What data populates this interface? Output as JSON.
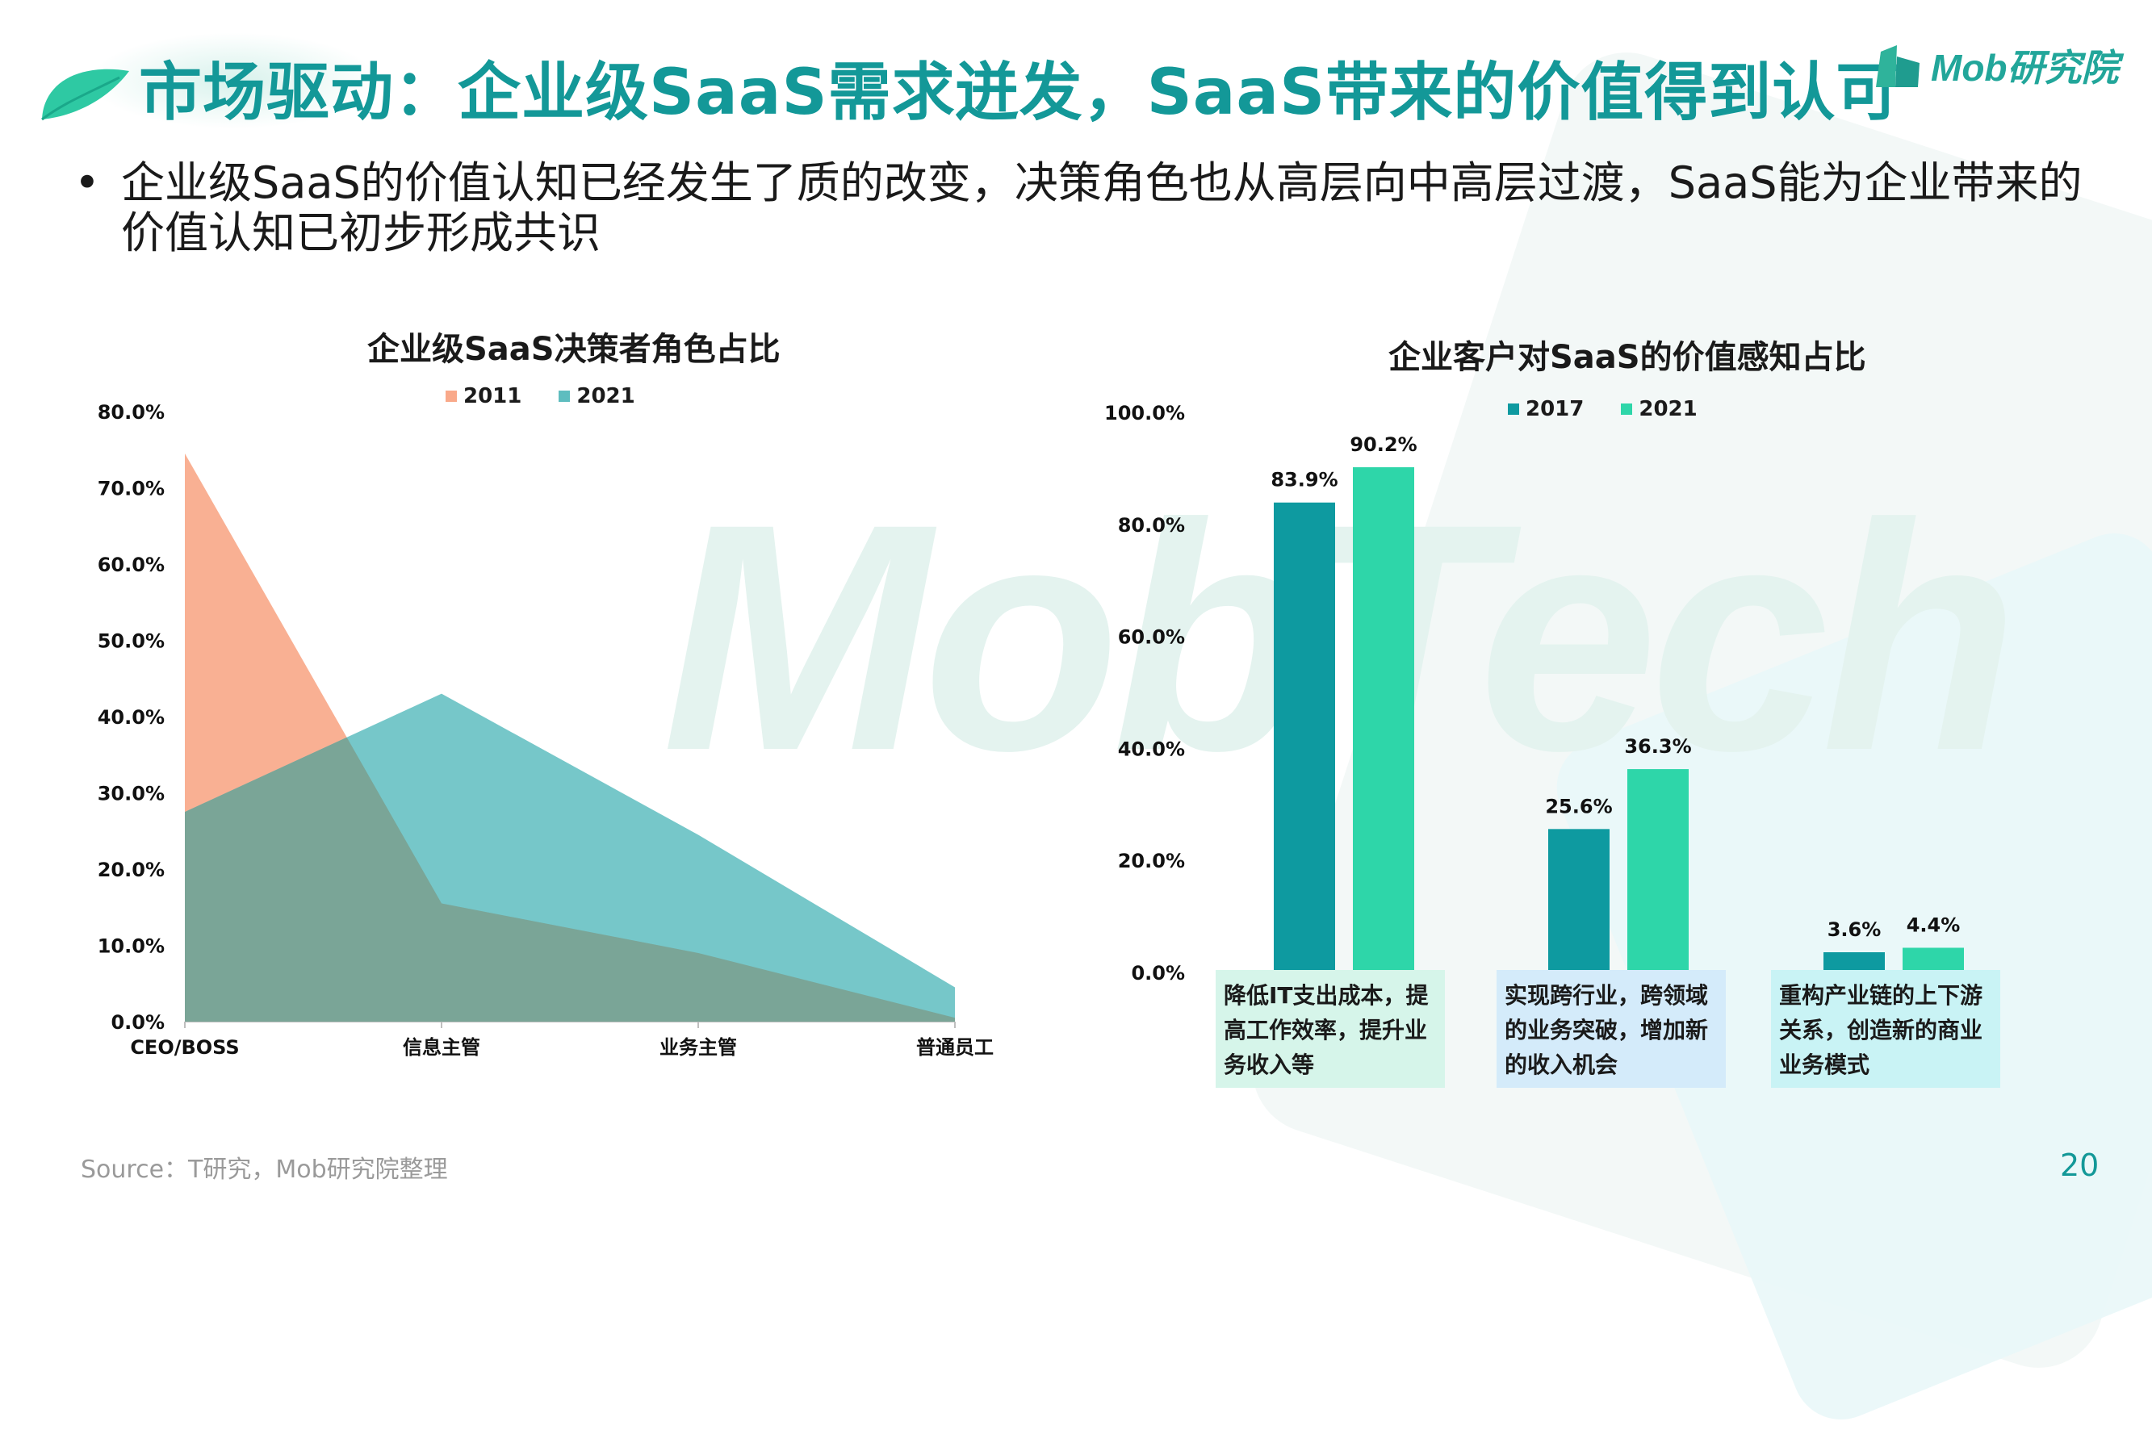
{
  "header": {
    "title": "市场驱动：企业级SaaS需求迸发，SaaS带来的价值得到认可",
    "logo_text": "Mob研究院"
  },
  "bullet": {
    "marker": "•",
    "text": "企业级SaaS的价值认知已经发生了质的改变，决策角色也从高层向中高层过渡，SaaS能为企业带来的价值认知已初步形成共识"
  },
  "watermark": "MobTech",
  "colors": {
    "title": "#139898",
    "series_2011": "#f9a98a",
    "series_2021_area": "#5ebdbf",
    "overlap": "#7aa597",
    "series_2017": "#0e9aa0",
    "series_2021_bar": "#2ed6a9"
  },
  "chart_data": [
    {
      "type": "area",
      "title": "企业级SaaS决策者角色占比",
      "categories": [
        "CEO/BOSS",
        "信息主管",
        "业务主管",
        "普通员工"
      ],
      "series": [
        {
          "name": "2011",
          "values": [
            74.5,
            15.5,
            9.0,
            0.5
          ]
        },
        {
          "name": "2021",
          "values": [
            27.5,
            43.0,
            24.5,
            4.5
          ]
        }
      ],
      "y_ticks": [
        "0.0%",
        "10.0%",
        "20.0%",
        "30.0%",
        "40.0%",
        "50.0%",
        "60.0%",
        "70.0%",
        "80.0%"
      ],
      "ylim": [
        0,
        80
      ],
      "legend_position": "top-center"
    },
    {
      "type": "bar",
      "title": "企业客户对SaaS的价值感知占比",
      "categories": [
        "降低IT支出成本，提高工作效率，提升业务收入等",
        "实现跨行业，跨领域的业务突破，增加新的收入机会",
        "重构产业链的上下游关系，创造新的商业业务模式"
      ],
      "series": [
        {
          "name": "2017",
          "values": [
            83.9,
            25.6,
            3.6
          ],
          "labels": [
            "83.9%",
            "25.6%",
            "3.6%"
          ]
        },
        {
          "name": "2021",
          "values": [
            90.2,
            36.3,
            4.4
          ],
          "labels": [
            "90.2%",
            "36.3%",
            "4.4%"
          ]
        }
      ],
      "y_ticks": [
        "0.0%",
        "20.0%",
        "40.0%",
        "60.0%",
        "80.0%",
        "100.0%"
      ],
      "ylim": [
        0,
        100
      ],
      "legend_position": "top-center"
    }
  ],
  "category_boxes": [
    {
      "text": "降低IT支出成本，提高工作效率，提升业务收入等",
      "color": "#d6f5ea"
    },
    {
      "text": "实现跨行业，跨领域的业务突破，增加新的收入机会",
      "color": "#d4ebfa"
    },
    {
      "text": "重构产业链的上下游关系，创造新的商业业务模式",
      "color": "#c9f3f5"
    }
  ],
  "footer": {
    "source": "Source：T研究，Mob研究院整理",
    "page_number": "20"
  }
}
